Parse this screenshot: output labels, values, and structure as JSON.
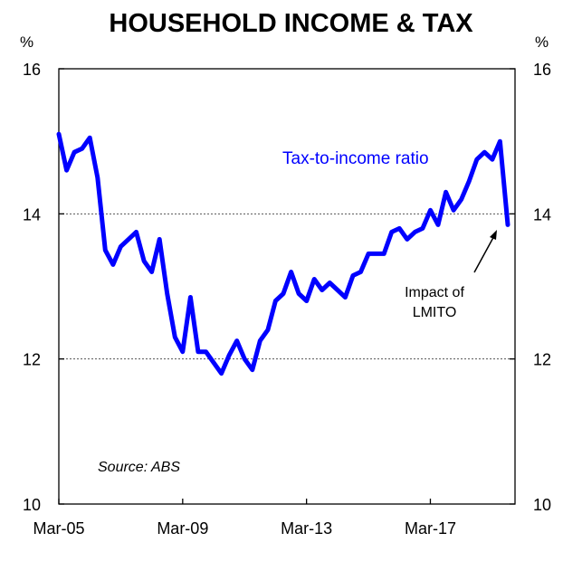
{
  "chart_data": {
    "type": "line",
    "title": "HOUSEHOLD INCOME & TAX",
    "y_unit_left": "%",
    "y_unit_right": "%",
    "ylim": [
      10,
      16
    ],
    "yticks": [
      10,
      12,
      14,
      16
    ],
    "gridlines_y": [
      12,
      14
    ],
    "x_tick_labels": [
      "Mar-05",
      "Mar-09",
      "Mar-13",
      "Mar-17"
    ],
    "x_tick_index": [
      0,
      16,
      32,
      48
    ],
    "series": [
      {
        "name": "Tax-to-income ratio",
        "color": "#0000ff",
        "values": [
          15.1,
          14.6,
          14.85,
          14.9,
          15.05,
          14.5,
          13.5,
          13.3,
          13.55,
          13.65,
          13.75,
          13.35,
          13.2,
          13.65,
          12.9,
          12.3,
          12.1,
          12.85,
          12.1,
          12.1,
          11.95,
          11.8,
          12.05,
          12.25,
          12.0,
          11.85,
          12.25,
          12.4,
          12.8,
          12.9,
          13.2,
          12.9,
          12.8,
          13.1,
          12.95,
          13.05,
          12.95,
          12.85,
          13.15,
          13.2,
          13.45,
          13.45,
          13.45,
          13.75,
          13.8,
          13.65,
          13.75,
          13.8,
          14.05,
          13.85,
          14.3,
          14.05,
          14.2,
          14.45,
          14.75,
          14.85,
          14.75,
          15.0,
          13.85
        ]
      }
    ],
    "annotation": [
      "Impact of",
      "LMITO"
    ],
    "source": "Source: ABS"
  }
}
